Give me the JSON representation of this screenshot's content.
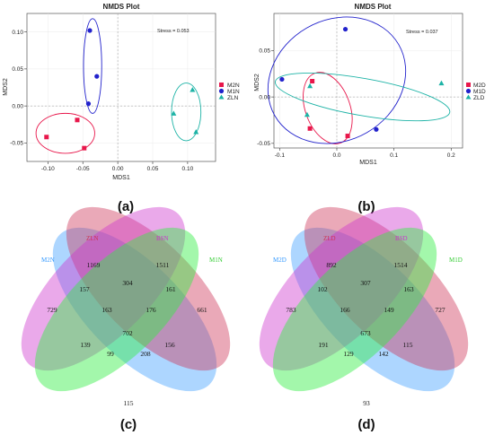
{
  "chart_data": [
    {
      "type": "scatter",
      "title": "NMDS Plot",
      "xlabel": "MDS1",
      "ylabel": "MDS2",
      "annotation": "Stress = 0.053",
      "panel_label": "(a)",
      "xlim": [
        -0.13,
        0.14
      ],
      "ylim": [
        -0.075,
        0.125
      ],
      "xticks": [
        -0.1,
        -0.05,
        0.0,
        0.05,
        0.1
      ],
      "xtick_labels": [
        "-0.10",
        "-0.05",
        "0.00",
        "0.05",
        "0.10"
      ],
      "yticks": [
        -0.05,
        0.0,
        0.05,
        0.1
      ],
      "ytick_labels": [
        "-0.05",
        "0.00",
        "0.05",
        "0.10"
      ],
      "legend_position": "right",
      "series": [
        {
          "name": "M2N",
          "color": "#e8174b",
          "marker": "square",
          "x": [
            -0.102,
            -0.058,
            -0.048
          ],
          "y": [
            -0.042,
            -0.019,
            -0.057
          ]
        },
        {
          "name": "M1N",
          "color": "#2222cc",
          "marker": "circle",
          "x": [
            -0.04,
            -0.03,
            -0.042
          ],
          "y": [
            0.102,
            0.04,
            0.003
          ]
        },
        {
          "name": "ZLN",
          "color": "#1db3a6",
          "marker": "triangle",
          "x": [
            0.08,
            0.107,
            0.112
          ],
          "y": [
            -0.01,
            0.022,
            -0.035
          ]
        }
      ],
      "ellipses": [
        {
          "series": "M2N",
          "cx": -0.075,
          "cy": -0.037,
          "rx": 0.042,
          "ry": 0.027,
          "angle": 0
        },
        {
          "series": "M1N",
          "cx": -0.036,
          "cy": 0.054,
          "rx": 0.013,
          "ry": 0.064,
          "angle": 0
        },
        {
          "series": "ZLN",
          "cx": 0.098,
          "cy": -0.008,
          "rx": 0.021,
          "ry": 0.039,
          "angle": 0
        }
      ]
    },
    {
      "type": "scatter",
      "title": "NMDS Plot",
      "xlabel": "MDS1",
      "ylabel": "MDS2",
      "annotation": "Stress = 0.037",
      "panel_label": "(b)",
      "xlim": [
        -0.11,
        0.22
      ],
      "ylim": [
        -0.055,
        0.09
      ],
      "xticks": [
        -0.1,
        0.0,
        0.1,
        0.2
      ],
      "xtick_labels": [
        "-0.1",
        "0.0",
        "0.1",
        "0.2"
      ],
      "yticks": [
        -0.05,
        0.0,
        0.05
      ],
      "ytick_labels": [
        "-0.05",
        "0.00",
        "0.05"
      ],
      "legend_position": "right",
      "series": [
        {
          "name": "M2D",
          "color": "#e8174b",
          "marker": "square",
          "x": [
            -0.043,
            -0.047,
            0.019
          ],
          "y": [
            0.017,
            -0.034,
            -0.042
          ]
        },
        {
          "name": "M1D",
          "color": "#2222cc",
          "marker": "circle",
          "x": [
            -0.096,
            0.015,
            0.069
          ],
          "y": [
            0.019,
            0.073,
            -0.035
          ]
        },
        {
          "name": "ZLD",
          "color": "#1db3a6",
          "marker": "triangle",
          "x": [
            -0.047,
            -0.052,
            0.183
          ],
          "y": [
            0.012,
            -0.019,
            0.015
          ]
        }
      ],
      "ellipses": [
        {
          "series": "M2D",
          "cx": -0.016,
          "cy": -0.012,
          "rx": 0.039,
          "ry": 0.04,
          "angle": -20
        },
        {
          "series": "M1D",
          "cx": 0.0,
          "cy": 0.018,
          "rx": 0.125,
          "ry": 0.065,
          "angle": -30
        },
        {
          "series": "ZLD",
          "cx": 0.045,
          "cy": 0.0,
          "rx": 0.155,
          "ry": 0.02,
          "angle": 10
        }
      ]
    }
  ],
  "venn_c": {
    "panel_label": "(c)",
    "sets": [
      {
        "name": "M2N",
        "color": "#3399ff"
      },
      {
        "name": "ZLN",
        "color": "#cc3355"
      },
      {
        "name": "BSN",
        "color": "#cc33cc"
      },
      {
        "name": "M1N",
        "color": "#33cc33"
      }
    ],
    "counts": {
      "A": "729",
      "B": "1169",
      "C": "1511",
      "D": "661",
      "AB": "157",
      "BC": "304",
      "CD": "161",
      "AC": "163",
      "BD": "176",
      "AD": "115",
      "ABC": "139",
      "BCD": "156",
      "ABD": "99",
      "ACD": "208",
      "ABCD": "702"
    }
  },
  "venn_d": {
    "panel_label": "(d)",
    "sets": [
      {
        "name": "M2D",
        "color": "#3399ff"
      },
      {
        "name": "ZLD",
        "color": "#cc3355"
      },
      {
        "name": "BSD",
        "color": "#cc33cc"
      },
      {
        "name": "M1D",
        "color": "#33cc33"
      }
    ],
    "counts": {
      "A": "783",
      "B": "892",
      "C": "1514",
      "D": "727",
      "AB": "102",
      "BC": "307",
      "CD": "163",
      "AC": "166",
      "BD": "149",
      "AD": "93",
      "ABC": "191",
      "BCD": "115",
      "ABD": "129",
      "ACD": "142",
      "ABCD": "673"
    }
  }
}
